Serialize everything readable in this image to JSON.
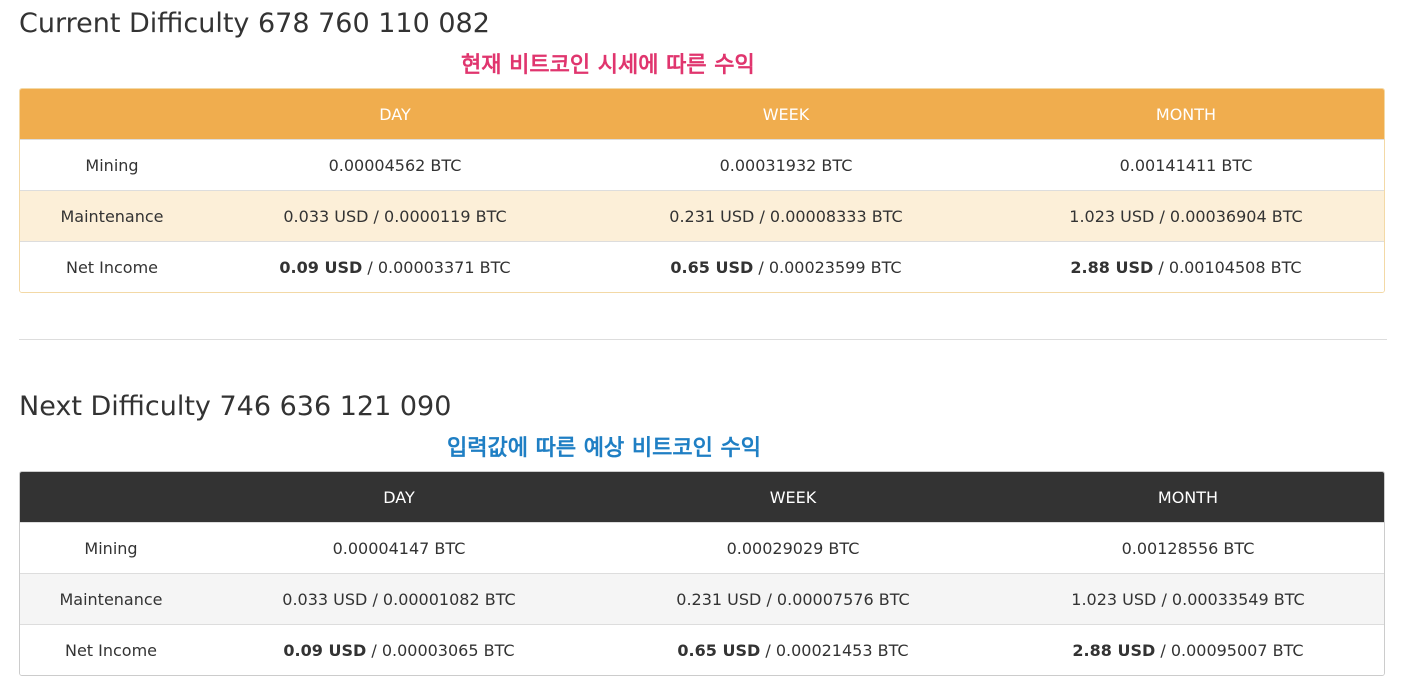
{
  "current": {
    "title": "Current Difficulty 678 760 110 082",
    "annotation": "현재 비트코인 시세에 따른 수익",
    "annotation_color": "#e0356e",
    "header_color": "#f0ad4e",
    "columns": [
      "",
      "DAY",
      "WEEK",
      "MONTH"
    ],
    "rows": [
      {
        "label": "Mining",
        "cells": [
          {
            "usd": "",
            "sep": "",
            "btc": "0.00004562 BTC"
          },
          {
            "usd": "",
            "sep": "",
            "btc": "0.00031932 BTC"
          },
          {
            "usd": "",
            "sep": "",
            "btc": "0.00141411 BTC"
          }
        ]
      },
      {
        "label": "Maintenance",
        "cells": [
          {
            "usd": "0.033 USD",
            "sep": " / ",
            "btc": "0.0000119 BTC"
          },
          {
            "usd": "0.231 USD",
            "sep": " / ",
            "btc": "0.00008333 BTC"
          },
          {
            "usd": "1.023 USD",
            "sep": " / ",
            "btc": "0.00036904 BTC"
          }
        ]
      },
      {
        "label": "Net Income",
        "cells": [
          {
            "usd": "0.09 USD",
            "sep": " / ",
            "btc": "0.00003371 BTC"
          },
          {
            "usd": "0.65 USD",
            "sep": " / ",
            "btc": "0.00023599 BTC"
          },
          {
            "usd": "2.88 USD",
            "sep": " / ",
            "btc": "0.00104508 BTC"
          }
        ]
      }
    ]
  },
  "next": {
    "title": "Next Difficulty 746 636 121 090",
    "annotation": "입력값에 따른 예상 비트코인 수익",
    "annotation_color": "#1f7fc4",
    "header_color": "#333333",
    "columns": [
      "",
      "DAY",
      "WEEK",
      "MONTH"
    ],
    "rows": [
      {
        "label": "Mining",
        "cells": [
          {
            "usd": "",
            "sep": "",
            "btc": "0.00004147 BTC"
          },
          {
            "usd": "",
            "sep": "",
            "btc": "0.00029029 BTC"
          },
          {
            "usd": "",
            "sep": "",
            "btc": "0.00128556 BTC"
          }
        ]
      },
      {
        "label": "Maintenance",
        "cells": [
          {
            "usd": "0.033 USD",
            "sep": " / ",
            "btc": "0.00001082 BTC"
          },
          {
            "usd": "0.231 USD",
            "sep": " / ",
            "btc": "0.00007576 BTC"
          },
          {
            "usd": "1.023 USD",
            "sep": " / ",
            "btc": "0.00033549 BTC"
          }
        ]
      },
      {
        "label": "Net Income",
        "cells": [
          {
            "usd": "0.09 USD",
            "sep": " / ",
            "btc": "0.00003065 BTC"
          },
          {
            "usd": "0.65 USD",
            "sep": " / ",
            "btc": "0.00021453 BTC"
          },
          {
            "usd": "2.88 USD",
            "sep": " / ",
            "btc": "0.00095007 BTC"
          }
        ]
      }
    ]
  }
}
